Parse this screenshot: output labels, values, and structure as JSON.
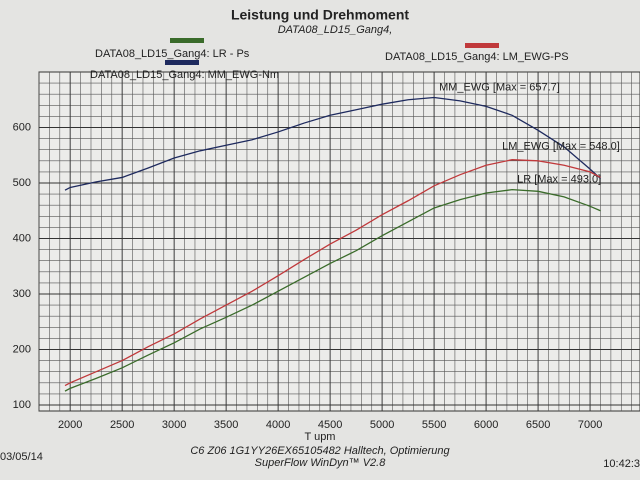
{
  "chart_data": {
    "type": "line",
    "title": "Leistung und Drehmoment",
    "subtitle": "DATA08_LD15_Gang4,",
    "x_label": "T   upm",
    "footer": [
      "C6 Z06 1G1YY26EX65105482 Halltech, Optimierung",
      "SuperFlow WinDyn™ V2.8"
    ],
    "date": "03/05/14",
    "time": "10:42:3",
    "xlim": [
      1700,
      7480
    ],
    "ylim": [
      100,
      700
    ],
    "xticks": [
      2000,
      2500,
      3000,
      3500,
      4000,
      4500,
      5000,
      5500,
      6000,
      6500,
      7000
    ],
    "yticks": [
      100,
      200,
      300,
      400,
      500,
      600
    ],
    "grid": true,
    "x": [
      1950,
      2000,
      2250,
      2500,
      2750,
      3000,
      3250,
      3500,
      3750,
      4000,
      4250,
      4500,
      4750,
      5000,
      5250,
      5500,
      5750,
      6000,
      6250,
      6500,
      6750,
      7000,
      7100
    ],
    "series": [
      {
        "name": "DATA08_LD15_Gang4:  LR  - Ps",
        "color": "#3a6b2a",
        "annotation": "LR   [Max = 493.0]",
        "values": [
          125,
          130,
          148,
          167,
          190,
          212,
          237,
          258,
          280,
          305,
          330,
          355,
          378,
          405,
          430,
          455,
          470,
          482,
          488,
          485,
          475,
          458,
          450
        ]
      },
      {
        "name": "DATA08_LD15_Gang4: MM_EWG-Nm",
        "color": "#1e2a5e",
        "annotation": "MM_EWG [Max = 657.7]",
        "values": [
          487,
          492,
          502,
          510,
          527,
          545,
          558,
          568,
          578,
          592,
          608,
          622,
          632,
          642,
          650,
          654,
          648,
          638,
          622,
          595,
          565,
          525,
          508
        ]
      },
      {
        "name": "DATA08_LD15_Gang4: LM_EWG-PS",
        "color": "#c0393b",
        "annotation": "LM_EWG [Max = 548.0]",
        "values": [
          135,
          140,
          160,
          180,
          205,
          228,
          255,
          280,
          305,
          333,
          362,
          390,
          415,
          443,
          468,
          495,
          515,
          532,
          542,
          540,
          532,
          520,
          510
        ]
      }
    ]
  }
}
